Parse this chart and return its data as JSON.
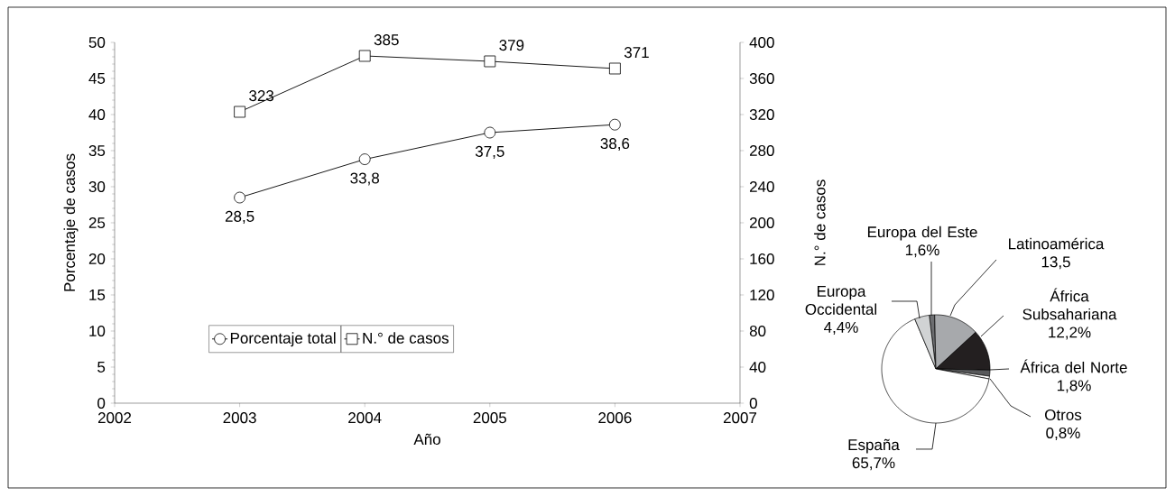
{
  "chart_data": [
    {
      "type": "line",
      "x": [
        2003,
        2004,
        2005,
        2006
      ],
      "xlim": [
        2002,
        2007
      ],
      "xticks": [
        2002,
        2003,
        2004,
        2005,
        2006,
        2007
      ],
      "ylim": [
        0,
        50
      ],
      "yticks": [
        0,
        5,
        10,
        15,
        20,
        25,
        30,
        35,
        40,
        45,
        50
      ],
      "y2lim": [
        0,
        400
      ],
      "y2ticks": [
        0,
        40,
        80,
        120,
        160,
        200,
        240,
        280,
        320,
        360,
        400
      ],
      "xlabel": "Año",
      "ylabel": "Porcentaje de casos",
      "y2label": "N.° de casos",
      "legend": "bottom left",
      "series": [
        {
          "name": "Porcentaje total",
          "color": "#000000",
          "marker": "circle",
          "values": [
            28.5,
            33.8,
            37.5,
            38.6
          ],
          "value_labels": [
            "28,5",
            "33,8",
            "37,5",
            "38,6"
          ]
        },
        {
          "name": "N.° de casos",
          "color": "#000000",
          "marker": "square",
          "axis": "y2",
          "values": [
            323,
            385,
            379,
            371
          ],
          "value_labels": [
            "323",
            "385",
            "379",
            "371"
          ]
        }
      ]
    },
    {
      "type": "pie",
      "categories": [
        "Europa del Este",
        "Latinoamérica",
        "África Subsahariana",
        "África del Norte",
        "Otros",
        "España",
        "Europa Occidental"
      ],
      "values": [
        1.6,
        13.5,
        12.2,
        1.8,
        0.8,
        65.7,
        4.4
      ],
      "colors": [
        "#6d6e71",
        "#a7a9ac",
        "#231f20",
        "#58595b",
        "#ffffff",
        "#ffffff",
        "#d1d3d4"
      ],
      "value_labels": [
        "1,6%",
        "13,5",
        "12,2%",
        "1,8%",
        "0,8%",
        "65,7%",
        "4,4%"
      ]
    }
  ]
}
